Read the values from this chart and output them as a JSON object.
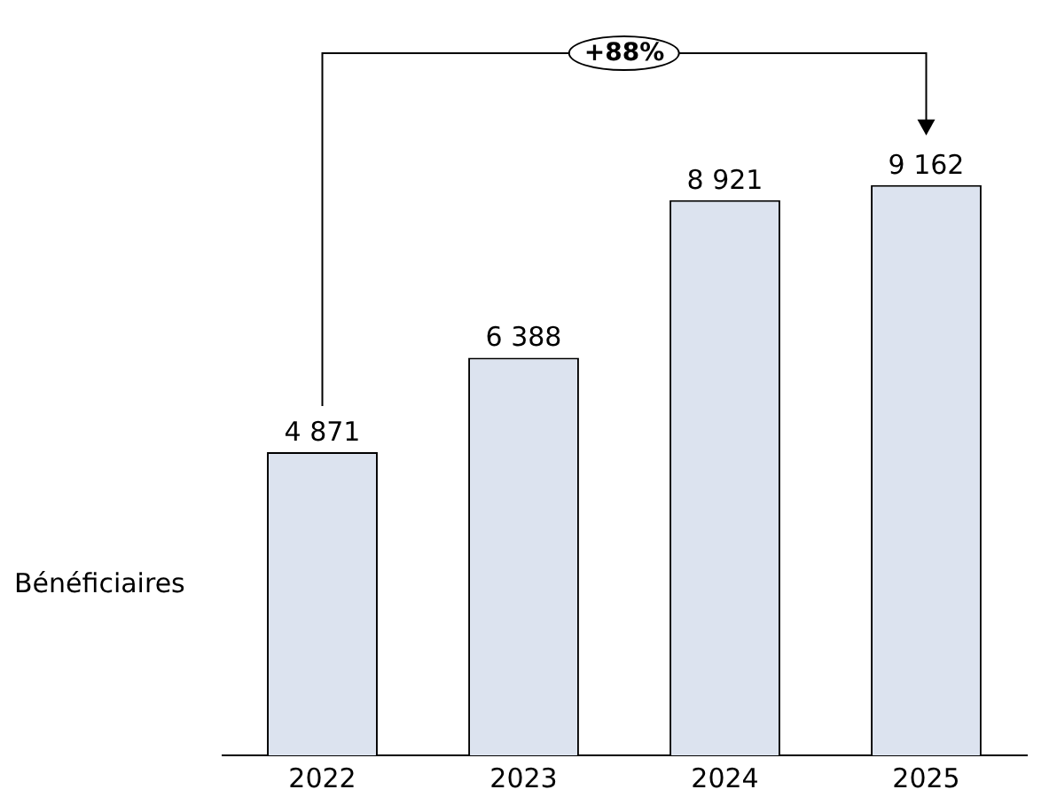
{
  "chart_data": {
    "type": "bar",
    "ylabel": "Bénéficiaires",
    "categories": [
      "2022",
      "2023",
      "2024",
      "2025"
    ],
    "values": [
      4871,
      6388,
      8921,
      9162
    ],
    "value_labels": [
      "4 871",
      "6 388",
      "8 921",
      "9 162"
    ],
    "color": "#dce3ef",
    "annotations": [
      "+88%"
    ],
    "grid": false,
    "legend": false
  }
}
